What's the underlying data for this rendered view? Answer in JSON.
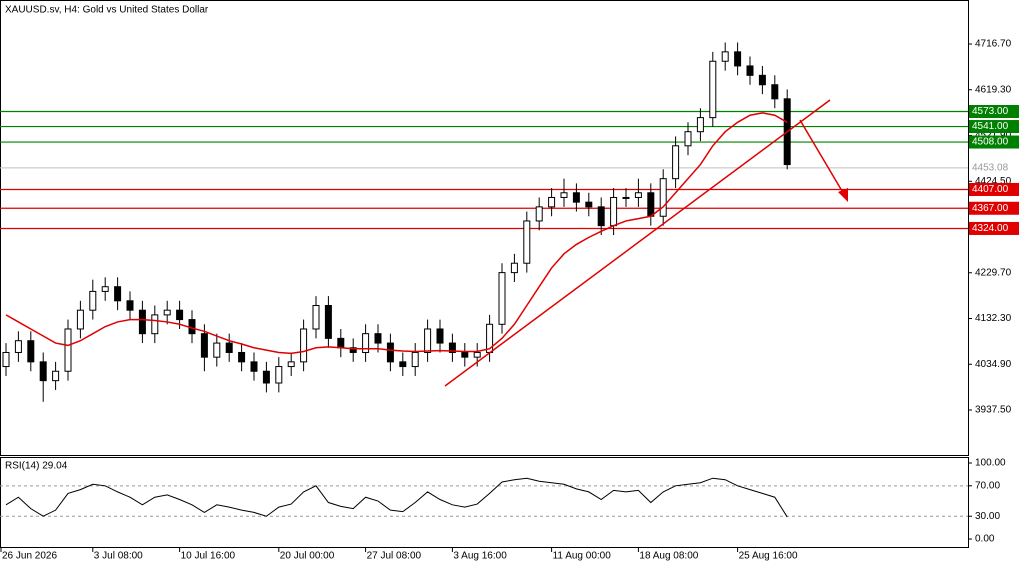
{
  "chart_data": {
    "type": "candlestick",
    "title": "XAUUSD.sv, H4:  Gold vs United States Dollar",
    "open": [
      4030,
      4060,
      4085,
      4040,
      4000,
      4020,
      4110,
      4150,
      4190,
      4200,
      4170,
      4150,
      4100,
      4140,
      4150,
      4130,
      4100,
      4050,
      4080,
      4060,
      4040,
      4020,
      3995,
      4030,
      4040,
      4110,
      4160,
      4090,
      4070,
      4060,
      4100,
      4080,
      4040,
      4030,
      4060,
      4110,
      4080,
      4060,
      4050,
      4060,
      4120,
      4230,
      4250,
      4340,
      4370,
      4390,
      4400,
      4380,
      4370,
      4330,
      4390,
      4390,
      4400,
      4350,
      4430,
      4500,
      4530,
      4560,
      4680,
      4700,
      4670,
      4650,
      4630,
      4600
    ],
    "high": [
      4080,
      4105,
      4105,
      4060,
      4040,
      4130,
      4170,
      4215,
      4220,
      4220,
      4190,
      4170,
      4160,
      4170,
      4170,
      4150,
      4120,
      4100,
      4100,
      4080,
      4060,
      4040,
      4050,
      4060,
      4130,
      4180,
      4180,
      4110,
      4090,
      4120,
      4120,
      4100,
      4060,
      4080,
      4130,
      4130,
      4100,
      4080,
      4080,
      4140,
      4250,
      4270,
      4360,
      4390,
      4410,
      4430,
      4420,
      4400,
      4390,
      4410,
      4410,
      4430,
      4420,
      4450,
      4520,
      4550,
      4580,
      4700,
      4720,
      4720,
      4690,
      4670,
      4650,
      4620
    ],
    "low": [
      4010,
      4040,
      4020,
      3955,
      3980,
      4000,
      4090,
      4130,
      4170,
      4150,
      4130,
      4080,
      4080,
      4120,
      4110,
      4080,
      4020,
      4030,
      4040,
      4020,
      4000,
      3975,
      3975,
      4010,
      4020,
      4090,
      4070,
      4050,
      4040,
      4040,
      4060,
      4020,
      4010,
      4010,
      4040,
      4060,
      4040,
      4030,
      4030,
      4040,
      4100,
      4210,
      4230,
      4320,
      4350,
      4370,
      4360,
      4350,
      4310,
      4310,
      4370,
      4370,
      4330,
      4330,
      4410,
      4480,
      4510,
      4540,
      4660,
      4650,
      4630,
      4610,
      4580,
      4450
    ],
    "close": [
      4060,
      4085,
      4040,
      4000,
      4020,
      4110,
      4150,
      4190,
      4200,
      4170,
      4150,
      4100,
      4140,
      4150,
      4130,
      4100,
      4050,
      4080,
      4060,
      4040,
      4020,
      3995,
      4030,
      4040,
      4110,
      4160,
      4090,
      4070,
      4060,
      4100,
      4080,
      4040,
      4030,
      4060,
      4110,
      4080,
      4060,
      4050,
      4060,
      4120,
      4230,
      4250,
      4340,
      4370,
      4390,
      4400,
      4380,
      4370,
      4330,
      4390,
      4390,
      4400,
      4350,
      4430,
      4500,
      4530,
      4560,
      4680,
      4700,
      4670,
      4650,
      4630,
      4600,
      4460
    ],
    "ma": {
      "color": "#e00000",
      "values": [
        4140,
        4125,
        4110,
        4095,
        4080,
        4075,
        4085,
        4100,
        4115,
        4125,
        4130,
        4130,
        4128,
        4125,
        4120,
        4112,
        4105,
        4095,
        4085,
        4078,
        4070,
        4065,
        4060,
        4058,
        4062,
        4070,
        4072,
        4070,
        4068,
        4068,
        4068,
        4065,
        4063,
        4062,
        4063,
        4064,
        4063,
        4062,
        4062,
        4068,
        4090,
        4120,
        4160,
        4200,
        4240,
        4270,
        4290,
        4305,
        4318,
        4330,
        4340,
        4345,
        4350,
        4370,
        4400,
        4430,
        4460,
        4500,
        4530,
        4550,
        4565,
        4570,
        4565,
        4550
      ]
    },
    "ylim": [
      3841.7,
      4810.4
    ],
    "yticks": [
      {
        "value": 3937.5,
        "label": "3937.50"
      },
      {
        "value": 4034.9,
        "label": "4034.90"
      },
      {
        "value": 4132.3,
        "label": "4132.30"
      },
      {
        "value": 4229.7,
        "label": "4229.70"
      },
      {
        "value": 4327.1,
        "label": "4327.10"
      },
      {
        "value": 4424.5,
        "label": "4424.50"
      },
      {
        "value": 4521.9,
        "label": "4521.90"
      },
      {
        "value": 4619.3,
        "label": "4619.30"
      },
      {
        "value": 4716.7,
        "label": "4716.70"
      }
    ],
    "xticks": [
      {
        "value": 0,
        "label": "26 Jun 2026"
      },
      {
        "value": 7,
        "label": "3 Jul 08:00"
      },
      {
        "value": 14,
        "label": "10 Jul 16:00"
      },
      {
        "value": 22,
        "label": "20 Jul 00:00"
      },
      {
        "value": 29,
        "label": "27 Jul 08:00"
      },
      {
        "value": 36,
        "label": "3 Aug 16:00"
      },
      {
        "value": 44,
        "label": "11 Aug 00:00"
      },
      {
        "value": 51,
        "label": "18 Aug 08:00"
      },
      {
        "value": 59,
        "label": "25 Aug 16:00"
      }
    ],
    "levels": [
      {
        "value": 4573,
        "label": "4573.00",
        "color": "#008000"
      },
      {
        "value": 4541,
        "label": "4541.00",
        "color": "#008000"
      },
      {
        "value": 4508,
        "label": "4508.00",
        "color": "#008000"
      },
      {
        "value": 4407,
        "label": "4407.00",
        "color": "#e00000"
      },
      {
        "value": 4367,
        "label": "4367.00",
        "color": "#e00000"
      },
      {
        "value": 4324,
        "label": "4324.00",
        "color": "#e00000"
      }
    ],
    "current_price": {
      "value": 4453.08,
      "label": "4453.08"
    },
    "rsi": {
      "label": "RSI(14) 29.04",
      "values": [
        45,
        55,
        40,
        30,
        38,
        60,
        65,
        72,
        70,
        62,
        55,
        45,
        55,
        58,
        52,
        45,
        35,
        45,
        42,
        38,
        35,
        30,
        42,
        46,
        62,
        70,
        48,
        43,
        40,
        55,
        50,
        38,
        36,
        48,
        62,
        52,
        45,
        42,
        46,
        60,
        75,
        78,
        80,
        76,
        74,
        72,
        66,
        62,
        52,
        64,
        62,
        64,
        48,
        62,
        70,
        72,
        74,
        80,
        78,
        70,
        65,
        60,
        55,
        29.04
      ],
      "ylim": [
        -11.8,
        107.9
      ],
      "yticks": [
        {
          "value": 100,
          "label": "100.00"
        },
        {
          "value": 70,
          "label": "70.00"
        },
        {
          "value": 30,
          "label": "30.00"
        },
        {
          "value": 0,
          "label": "0.00"
        }
      ],
      "dashed_levels": [
        70,
        30
      ]
    }
  }
}
